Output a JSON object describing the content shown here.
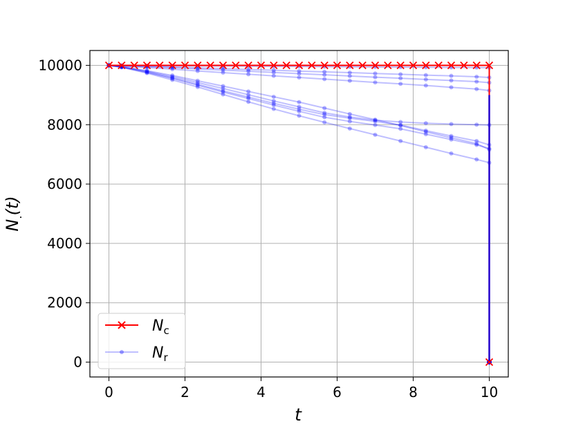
{
  "chart_data": {
    "type": "line",
    "xlabel": "t",
    "ylabel": "N.(t)",
    "xlim": [
      -0.5,
      10.5
    ],
    "ylim": [
      -500,
      10500
    ],
    "xticks": [
      0,
      2,
      4,
      6,
      8,
      10
    ],
    "yticks": [
      0,
      2000,
      4000,
      6000,
      8000,
      10000
    ],
    "grid": true,
    "legend": {
      "placement": "lower left",
      "entries": [
        {
          "symbol": "N",
          "subscript": "c",
          "color": "#ff0000",
          "marker": "x"
        },
        {
          "symbol": "N",
          "subscript": "r",
          "color": "#0000ff",
          "marker": "dot",
          "alpha": 0.25
        }
      ]
    },
    "final_value": 0,
    "series": [
      {
        "legend": "Nc",
        "color": "#ff0000",
        "x": [
          0,
          0.333,
          0.667,
          1,
          1.333,
          1.667,
          2,
          2.333,
          2.667,
          3,
          3.333,
          3.667,
          4,
          4.333,
          4.667,
          5,
          5.333,
          5.667,
          6,
          6.333,
          6.667,
          7,
          7.333,
          7.667,
          8,
          8.333,
          8.667,
          9,
          9.333,
          9.667,
          10
        ],
        "y": [
          10000,
          10000,
          10000,
          10000,
          10000,
          10000,
          10000,
          10000,
          10000,
          10000,
          10000,
          10000,
          10000,
          10000,
          10000,
          10000,
          10000,
          10000,
          10000,
          10000,
          10000,
          10000,
          10000,
          10000,
          10000,
          10000,
          10000,
          10000,
          10000,
          10000,
          10000
        ]
      }
    ],
    "runs": [
      {
        "x": [
          0,
          0.333,
          1,
          1.667,
          2.333,
          3,
          3.667,
          4.333,
          5,
          5.667,
          6.333,
          7,
          7.667,
          8.333,
          9,
          9.667,
          10
        ],
        "y": [
          10000,
          9996,
          9990,
          9985,
          9980,
          9975,
          9970,
          9965,
          9960,
          9955,
          9950,
          9945,
          9940,
          9935,
          9930,
          9925,
          9920
        ]
      },
      {
        "x": [
          0,
          0.333,
          1,
          1.667,
          2.333,
          3,
          3.667,
          4.333,
          5,
          5.667,
          6.333,
          7,
          7.667,
          8.333,
          9,
          9.667,
          10
        ],
        "y": [
          10000,
          9990,
          9970,
          9945,
          9915,
          9890,
          9860,
          9835,
          9805,
          9780,
          9755,
          9725,
          9700,
          9670,
          9645,
          9615,
          9590
        ]
      },
      {
        "x": [
          0,
          0.333,
          1,
          1.667,
          2.333,
          3,
          3.667,
          4.333,
          5,
          5.667,
          6.333,
          7,
          7.667,
          8.333,
          9,
          9.667,
          10
        ],
        "y": [
          10000,
          9985,
          9955,
          9920,
          9880,
          9840,
          9800,
          9760,
          9720,
          9680,
          9640,
          9600,
          9565,
          9525,
          9490,
          9450,
          9415
        ]
      },
      {
        "x": [
          0,
          0.333,
          1,
          1.667,
          2.333,
          3,
          3.667,
          4.333,
          5,
          5.667,
          6.333,
          7,
          7.667,
          8.333,
          9,
          9.667,
          10
        ],
        "y": [
          10000,
          9975,
          9925,
          9870,
          9810,
          9755,
          9700,
          9645,
          9590,
          9535,
          9480,
          9425,
          9375,
          9320,
          9260,
          9200,
          9150
        ]
      },
      {
        "x": [
          0,
          0.333,
          1,
          1.667,
          2.333,
          3,
          3.667,
          4.333,
          5,
          5.667,
          6.333,
          7,
          7.667,
          8.333,
          9,
          9.667,
          10
        ],
        "y": [
          10000,
          9950,
          9800,
          9620,
          9420,
          9220,
          9010,
          8800,
          8600,
          8400,
          8260,
          8150,
          8090,
          8050,
          8020,
          8000,
          7990
        ]
      },
      {
        "x": [
          0,
          0.333,
          1,
          1.667,
          2.333,
          3,
          3.667,
          4.333,
          5,
          5.667,
          6.333,
          7,
          7.667,
          8.333,
          9,
          9.667,
          10
        ],
        "y": [
          10000,
          9945,
          9780,
          9580,
          9360,
          9140,
          8930,
          8720,
          8520,
          8340,
          8220,
          8110,
          7990,
          7800,
          7620,
          7450,
          7320
        ]
      },
      {
        "x": [
          0,
          0.333,
          1,
          1.667,
          2.333,
          3,
          3.667,
          4.333,
          5,
          5.667,
          6.333,
          7,
          7.667,
          8.333,
          9,
          9.667,
          10
        ],
        "y": [
          10000,
          9940,
          9760,
          9560,
          9330,
          9100,
          8880,
          8660,
          8450,
          8250,
          8110,
          7990,
          7860,
          7680,
          7500,
          7320,
          7200
        ]
      },
      {
        "x": [
          0,
          0.333,
          1,
          1.667,
          2.333,
          3,
          3.667,
          4.333,
          5,
          5.667,
          6.333,
          7,
          7.667,
          8.333,
          9,
          9.667,
          10
        ],
        "y": [
          10000,
          9955,
          9820,
          9660,
          9480,
          9300,
          9120,
          8940,
          8760,
          8560,
          8360,
          8170,
          7970,
          7760,
          7560,
          7360,
          7160
        ]
      },
      {
        "x": [
          0,
          0.333,
          1,
          1.667,
          2.333,
          3,
          3.667,
          4.333,
          5,
          5.667,
          6.333,
          7,
          7.667,
          8.333,
          9,
          9.667,
          10
        ],
        "y": [
          10000,
          9935,
          9740,
          9510,
          9270,
          9020,
          8770,
          8530,
          8300,
          8080,
          7870,
          7660,
          7450,
          7240,
          7030,
          6830,
          6720
        ]
      }
    ]
  }
}
